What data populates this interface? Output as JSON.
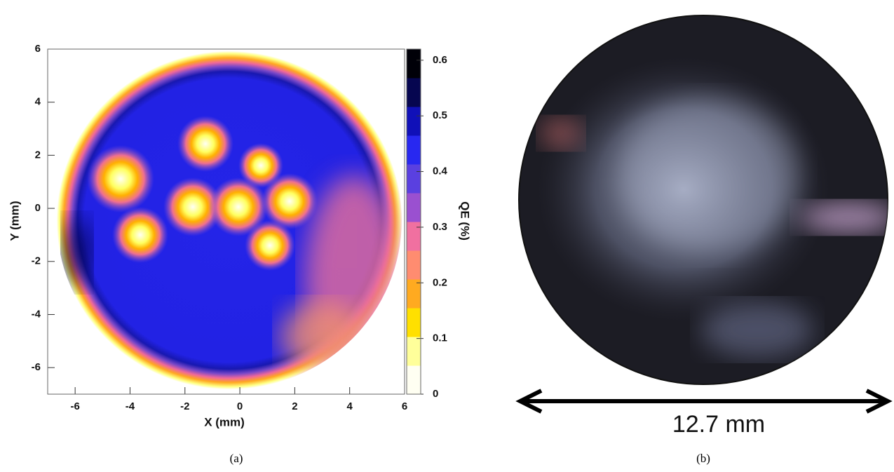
{
  "chart_data": {
    "type": "heatmap",
    "x_label": "X (mm)",
    "y_label": "Y (mm)",
    "xlim": [
      -7,
      6
    ],
    "xticks": [
      -6,
      -4,
      -2,
      0,
      2,
      4,
      6
    ],
    "ylim": [
      -7,
      6
    ],
    "yticks": [
      -6,
      -4,
      -2,
      0,
      2,
      4,
      6
    ],
    "colorbar": {
      "label": "QE (%)",
      "lim": [
        0,
        0.62
      ],
      "ticks": [
        0,
        0.1,
        0.2,
        0.3,
        0.4,
        0.5,
        0.6
      ],
      "colors": [
        "#fffff2",
        "#ffff9a",
        "#ffe000",
        "#ffaa20",
        "#ff8c70",
        "#f070a0",
        "#9a50d0",
        "#5a40e0",
        "#2828f0",
        "#1010b8",
        "#060650",
        "#000008"
      ]
    }
  },
  "captions": [
    "(a)",
    "(b)"
  ],
  "panel_b": {
    "scale_label": "12.7 mm"
  }
}
